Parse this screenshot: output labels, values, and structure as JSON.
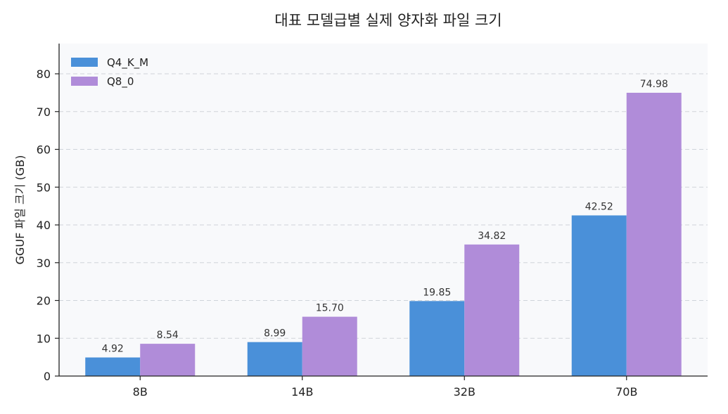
{
  "chart_data": {
    "type": "bar",
    "title": "대표 모델급별 실제 양자화 파일 크기",
    "xlabel": "",
    "ylabel": "GGUF 파일 크기 (GB)",
    "categories": [
      "8B",
      "14B",
      "32B",
      "70B"
    ],
    "series": [
      {
        "name": "Q4_K_M",
        "values": [
          4.92,
          8.99,
          19.85,
          42.52
        ],
        "labels": [
          "4.92",
          "8.99",
          "19.85",
          "42.52"
        ],
        "color": "#4a90d9"
      },
      {
        "name": "Q8_0",
        "values": [
          8.54,
          15.7,
          34.82,
          74.98
        ],
        "labels": [
          "8.54",
          "15.70",
          "34.82",
          "74.98"
        ],
        "color": "#b08cd9"
      }
    ],
    "ylim": [
      0,
      88
    ],
    "yticks": [
      0,
      10,
      20,
      30,
      40,
      50,
      60,
      70,
      80
    ],
    "grid": "y-dashed",
    "legend": "top-left",
    "background": "#f8f9fb"
  }
}
